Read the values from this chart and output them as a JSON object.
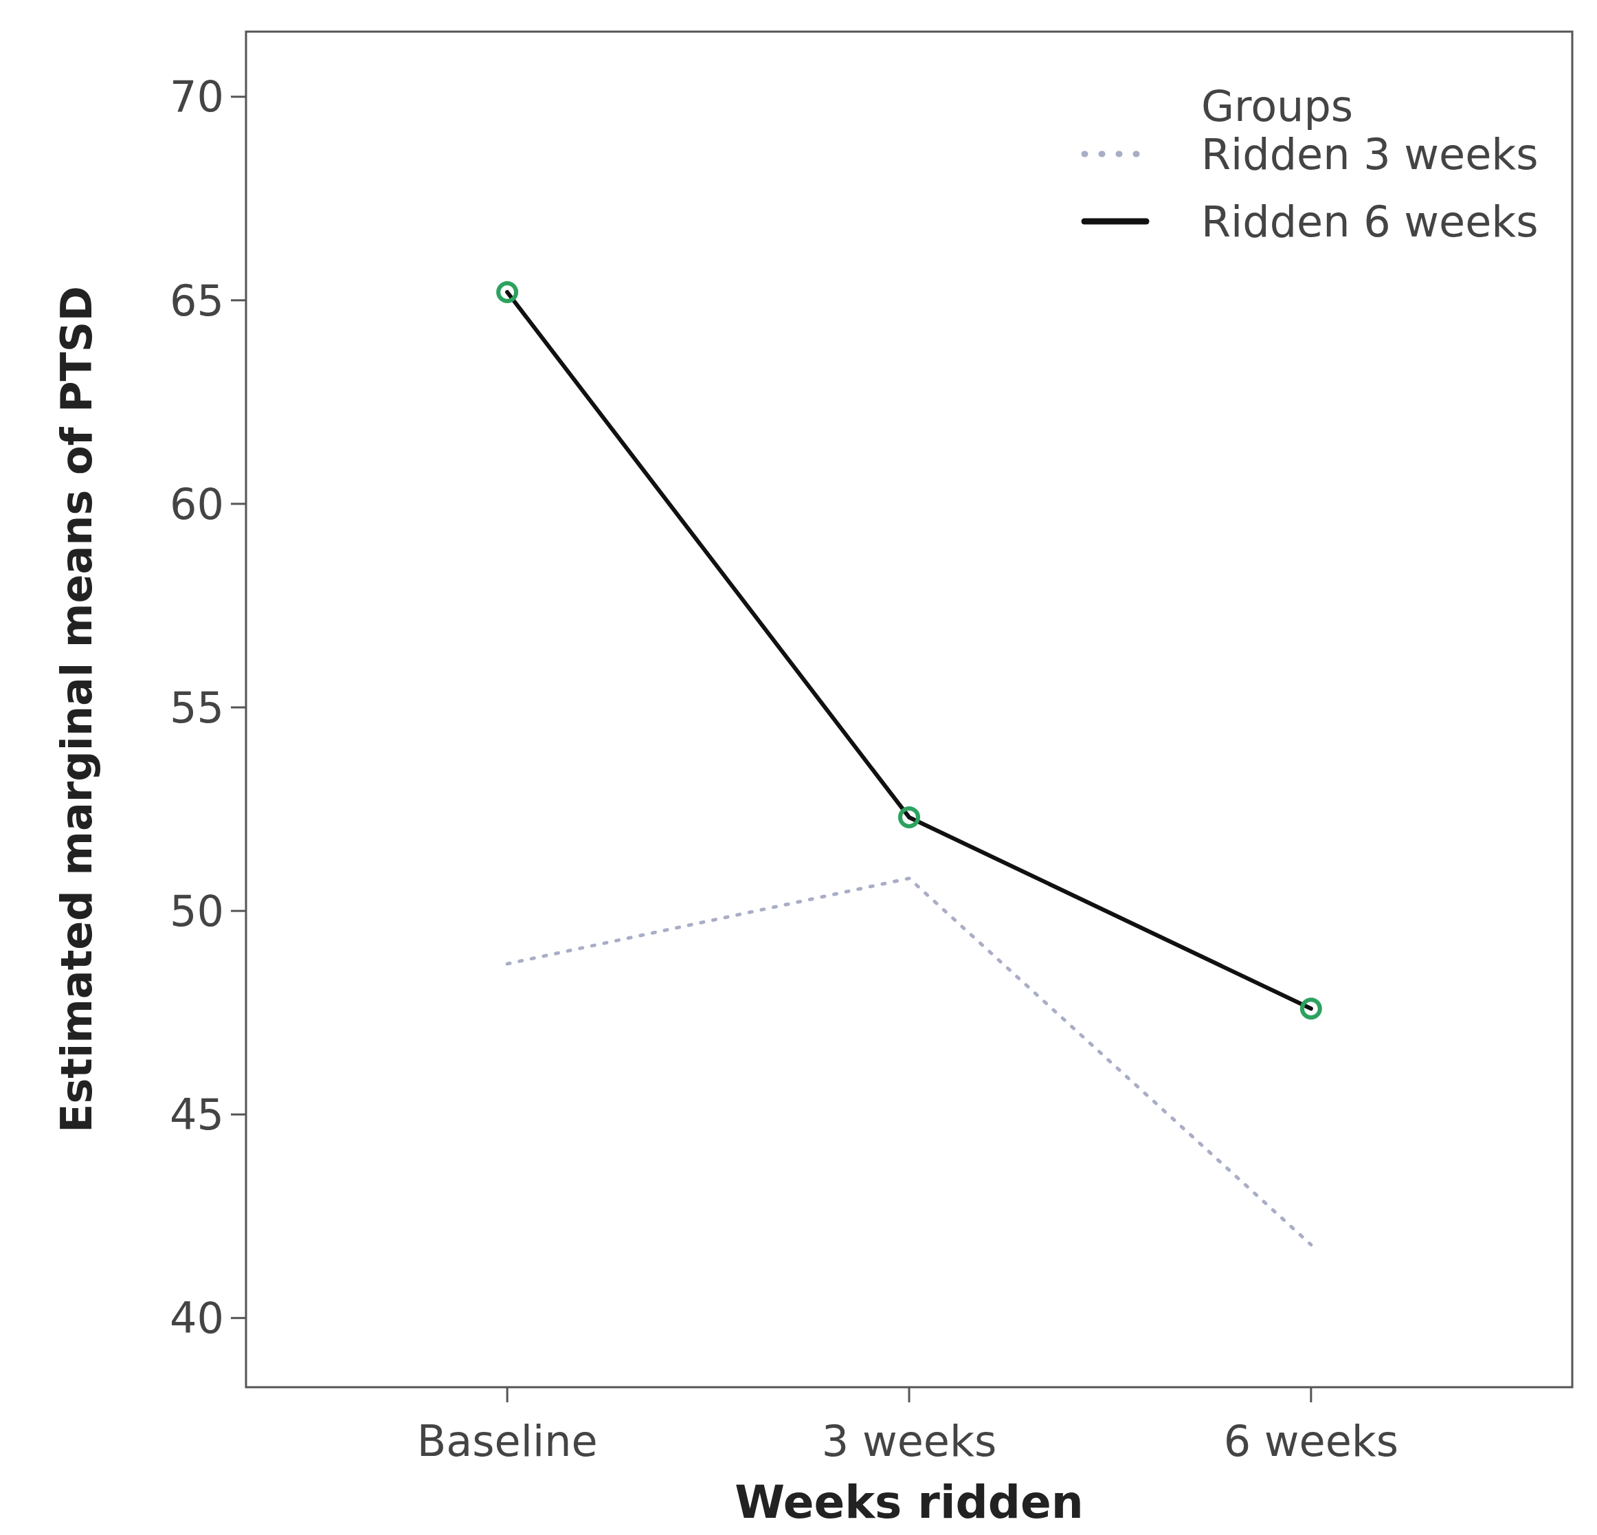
{
  "chart_data": {
    "type": "line",
    "xlabel": "Weeks ridden",
    "ylabel": "Estimated marginal means of PTSD",
    "legend_title": "Groups",
    "categories": [
      "Baseline",
      "3 weeks",
      "6 weeks"
    ],
    "series": [
      {
        "name": "Ridden 3 weeks",
        "color": "#a9adc6",
        "values": [
          48.7,
          50.8,
          41.8
        ],
        "line_style": "dotted",
        "marker": "none"
      },
      {
        "name": "Ridden 6 weeks",
        "color": "#111111",
        "values": [
          65.2,
          52.3,
          47.6
        ],
        "line_style": "solid",
        "marker": "circle",
        "colors": [
          "#2ca25f",
          "#2ca25f",
          "#2ca25f"
        ]
      }
    ],
    "ylim": [
      38.3,
      71.6
    ],
    "yticks": [
      40,
      45,
      50,
      55,
      60,
      65,
      70
    ],
    "grid": false,
    "legend": "top right"
  }
}
